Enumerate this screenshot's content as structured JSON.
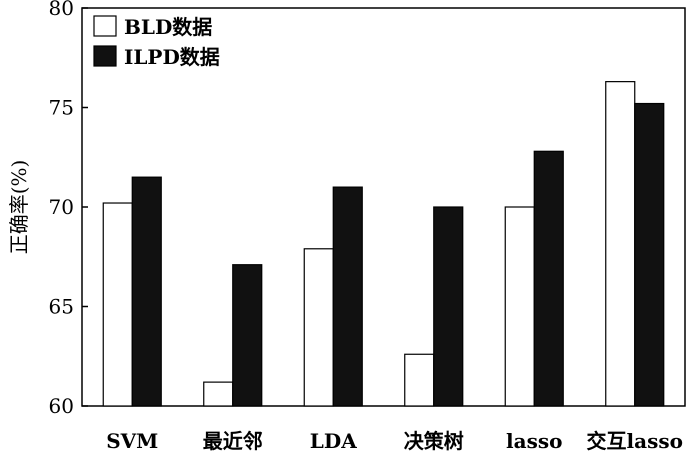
{
  "chart_data": {
    "type": "bar",
    "categories": [
      "SVM",
      "最近邻",
      "LDA",
      "决策树",
      "lasso",
      "交互lasso"
    ],
    "series": [
      {
        "name": "BLD数据",
        "values": [
          70.2,
          61.2,
          67.9,
          62.6,
          70.0,
          76.3
        ]
      },
      {
        "name": "ILPD数据",
        "values": [
          71.5,
          67.1,
          71.0,
          70.0,
          72.8,
          75.2
        ]
      }
    ],
    "title": "",
    "xlabel": "",
    "ylabel": "正确率(%)",
    "ylim": [
      60,
      80
    ],
    "yticks": [
      60,
      65,
      70,
      75,
      80
    ],
    "grid": false,
    "legend_position": "top-left",
    "colors": {
      "BLD数据": "#ffffff",
      "ILPD数据": "#111111",
      "edge": "#000000"
    }
  }
}
